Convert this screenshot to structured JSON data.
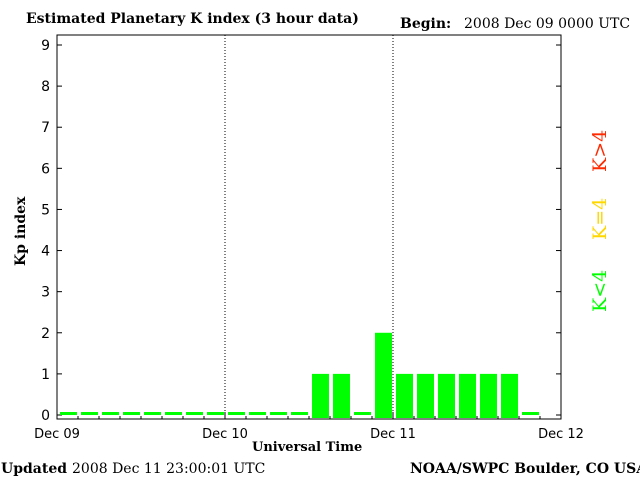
{
  "chart_data": {
    "type": "bar",
    "title": "Estimated Planetary K index (3 hour data)",
    "begin_label": "Begin:",
    "begin_value": "2008 Dec 09 0000 UTC",
    "xlabel": "Universal Time",
    "ylabel": "Kp index",
    "ylim": [
      0,
      9
    ],
    "yticks": [
      "0",
      "1",
      "2",
      "3",
      "4",
      "5",
      "6",
      "7",
      "8",
      "9"
    ],
    "xticks": [
      "Dec 09",
      "Dec 10",
      "Dec 11",
      "Dec 12"
    ],
    "interval_hours": 3,
    "values": [
      0,
      0,
      0,
      0,
      0,
      0,
      0,
      0,
      0,
      0,
      0,
      0,
      1,
      1,
      0,
      2,
      1,
      1,
      1,
      1,
      1,
      1,
      0
    ],
    "legend": [
      {
        "label": "K>4",
        "color": "#ff2a00"
      },
      {
        "label": "K=4",
        "color": "#ffd700"
      },
      {
        "label": "K<4",
        "color": "#00ff00"
      }
    ],
    "grid": "vertical dotted at day boundaries"
  },
  "footer": {
    "updated_label": "Updated",
    "updated_value": "2008 Dec 11 23:00:01 UTC",
    "source": "NOAA/SWPC Boulder, CO USA"
  }
}
